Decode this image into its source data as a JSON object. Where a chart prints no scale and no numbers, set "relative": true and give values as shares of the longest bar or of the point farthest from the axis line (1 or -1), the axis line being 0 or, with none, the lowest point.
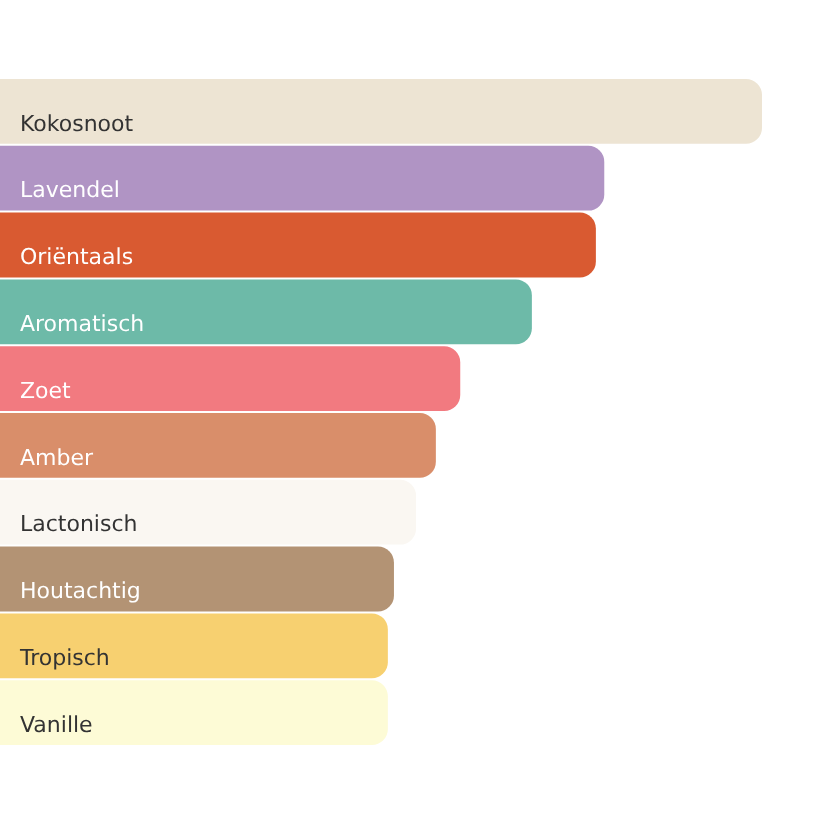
{
  "chart_data": {
    "type": "bar",
    "orientation": "horizontal",
    "relative": true,
    "categories": [
      "Kokosnoot",
      "Lavendel",
      "Oriëntaals",
      "Aromatisch",
      "Zoet",
      "Amber",
      "Lactonisch",
      "Houtachtig",
      "Tropisch",
      "Vanille"
    ],
    "values": [
      1,
      0.793,
      0.782,
      0.698,
      0.604,
      0.572,
      0.546,
      0.517,
      0.509,
      0.509
    ],
    "colors": [
      "#ede4d3",
      "#b094c4",
      "#d95a31",
      "#6dbaa8",
      "#f27a80",
      "#d98e6a",
      "#faf7f2",
      "#b39374",
      "#f7d070",
      "#fdfbd6"
    ],
    "legend": false
  }
}
